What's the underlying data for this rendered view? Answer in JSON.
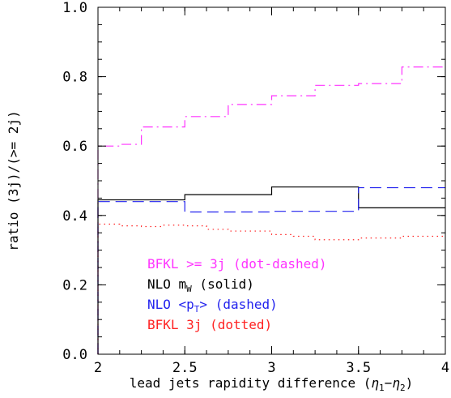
{
  "chart_data": {
    "type": "line",
    "xlabel": "lead jets rapidity difference",
    "xlabel_math": {
      "open": " (",
      "eta1": "η",
      "sub1": "1",
      "minus": "−",
      "eta2": "η",
      "sub2": "2",
      "close": ")"
    },
    "ylabel": "ratio (3j)/(>= 2j)",
    "xlim": [
      2,
      4
    ],
    "ylim": [
      0,
      1.0
    ],
    "xticks": [
      "2",
      "2.5",
      "3",
      "3.5",
      "4"
    ],
    "yticks": [
      "0.0",
      "0.2",
      "0.4",
      "0.6",
      "0.8",
      "1.0"
    ],
    "grid": false,
    "legend_position": "lower-left",
    "legend": [
      {
        "prefix": "BFKL >= 3j (dot-dashed)",
        "color": "#ff33ff"
      },
      {
        "prefix": "NLO m",
        "sub": "W",
        "suffix": " (solid)",
        "color": "#000000"
      },
      {
        "prefix": "NLO <p",
        "sub": "T",
        "suffix": "> (dashed)",
        "color": "#2222ee"
      },
      {
        "prefix": "BFKL 3j (dotted)",
        "color": "#ff2222"
      }
    ],
    "series": [
      {
        "style": "dashdot",
        "color": "#ff33ff",
        "edges": [
          2.0,
          2.125,
          2.25,
          2.375,
          2.5,
          2.625,
          2.75,
          2.875,
          3.0,
          3.125,
          3.25,
          3.375,
          3.5,
          3.625,
          3.75,
          3.875,
          4.0
        ],
        "values": [
          0.6,
          0.605,
          0.655,
          0.655,
          0.685,
          0.685,
          0.72,
          0.72,
          0.745,
          0.745,
          0.775,
          0.775,
          0.78,
          0.78,
          0.828,
          0.828
        ]
      },
      {
        "style": "solid",
        "color": "#000000",
        "edges": [
          2.0,
          2.5,
          3.0,
          3.5,
          4.0
        ],
        "values": [
          0.445,
          0.46,
          0.482,
          0.422
        ]
      },
      {
        "style": "dashed",
        "color": "#2222ee",
        "edges": [
          2.0,
          2.5,
          3.0,
          3.5,
          4.0
        ],
        "values": [
          0.44,
          0.41,
          0.412,
          0.48
        ]
      },
      {
        "style": "dotted",
        "color": "#ff2222",
        "edges": [
          2.0,
          2.125,
          2.25,
          2.375,
          2.5,
          2.625,
          2.75,
          2.875,
          3.0,
          3.125,
          3.25,
          3.375,
          3.5,
          3.625,
          3.75,
          3.875,
          4.0
        ],
        "values": [
          0.375,
          0.37,
          0.368,
          0.372,
          0.37,
          0.36,
          0.355,
          0.355,
          0.345,
          0.34,
          0.33,
          0.33,
          0.335,
          0.335,
          0.34,
          0.34
        ]
      }
    ]
  }
}
